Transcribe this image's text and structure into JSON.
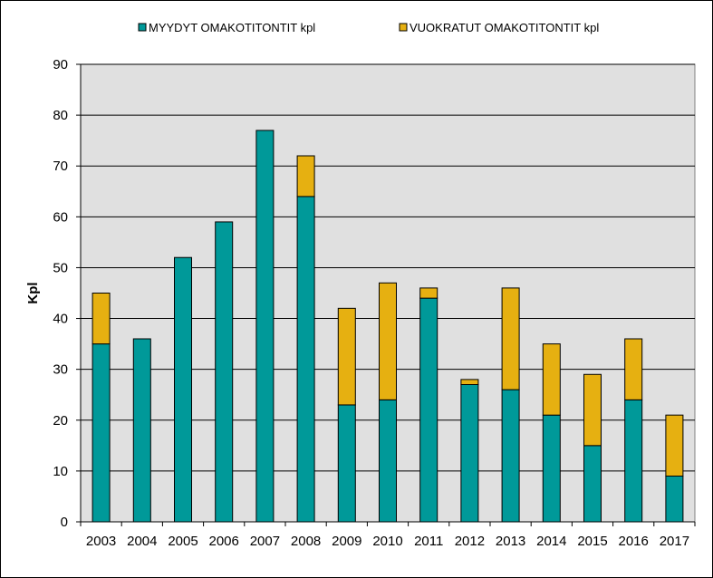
{
  "chart_data": {
    "type": "bar",
    "stacked": true,
    "categories": [
      "2003",
      "2004",
      "2005",
      "2006",
      "2007",
      "2008",
      "2009",
      "2010",
      "2011",
      "2012",
      "2013",
      "2014",
      "2015",
      "2016",
      "2017"
    ],
    "series": [
      {
        "name": "MYYDYT OMAKOTITONTIT kpl",
        "color": "#009999",
        "values": [
          35,
          36,
          52,
          59,
          77,
          64,
          23,
          24,
          44,
          27,
          26,
          21,
          15,
          24,
          9
        ]
      },
      {
        "name": "VUOKRATUT OMAKOTITONTIT kpl",
        "color": "#E6B011",
        "values": [
          10,
          0,
          0,
          0,
          0,
          8,
          19,
          23,
          2,
          1,
          20,
          14,
          14,
          12,
          12
        ]
      }
    ],
    "title": "",
    "xlabel": "",
    "ylabel": "Kpl",
    "ylim": [
      0,
      90
    ],
    "yticks": [
      "0",
      "10",
      "20",
      "30",
      "40",
      "50",
      "60",
      "70",
      "80",
      "90"
    ],
    "grid": true,
    "plot_background": "#E0E0E0",
    "legend_position": "top"
  }
}
